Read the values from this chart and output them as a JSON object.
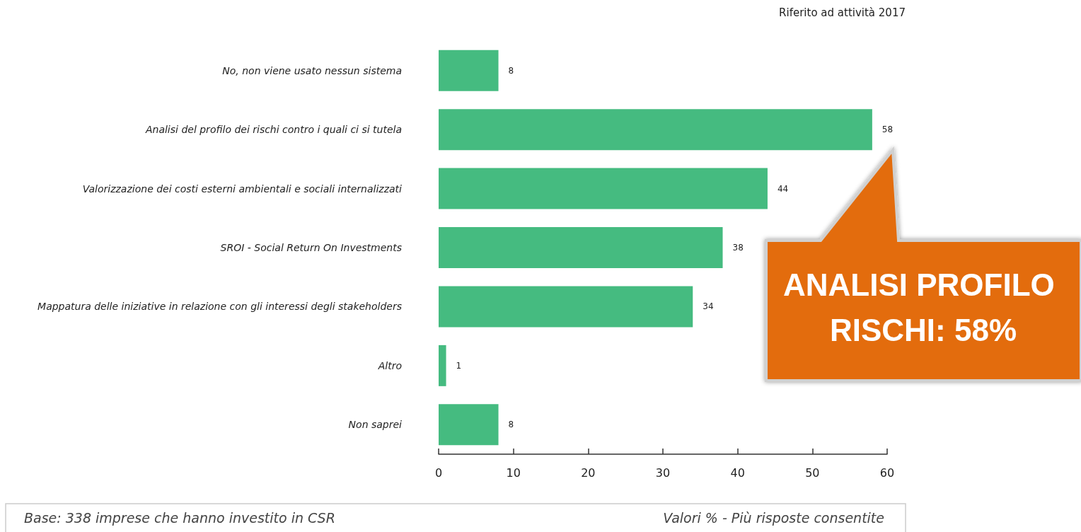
{
  "chart_data": {
    "type": "bar",
    "orientation": "horizontal",
    "categories": [
      "No, non viene usato nessun sistema",
      "Analisi del profilo dei rischi contro i quali ci si tutela",
      "Valorizzazione dei costi esterni ambientali e sociali internalizzati",
      "SROI - Social Return On Investments",
      "Mappatura delle iniziative in relazione con gli interessi degli stakeholders",
      "Altro",
      "Non saprei"
    ],
    "values": [
      8,
      58,
      44,
      38,
      34,
      1,
      8
    ],
    "color": "#45bb80",
    "xlim": [
      0,
      60
    ],
    "xticks": [
      0,
      10,
      20,
      30,
      40,
      50,
      60
    ],
    "data_labels": true,
    "grid": false,
    "annotations": [
      "Riferito ad attività 2017",
      "Base: 338 imprese che hanno investito in CSR",
      "Valori % - Più risposte consentite",
      "ANALISI PROFILO RISCHI: 58%"
    ]
  }
}
